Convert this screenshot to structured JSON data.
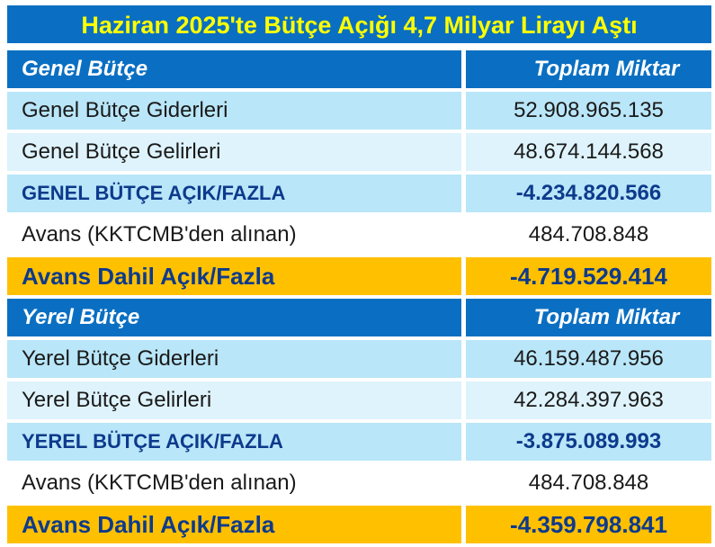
{
  "title": "Haziran 2025'te Bütçe Açığı 4,7 Milyar Lirayı Aştı",
  "genel": {
    "header": "Genel Bütçe",
    "amount_header": "Toplam Miktar",
    "rows": [
      {
        "label": "Genel Bütçe Giderleri",
        "value": "52.908.965.135"
      },
      {
        "label": "Genel Bütçe Gelirleri",
        "value": "48.674.144.568"
      },
      {
        "label": "GENEL BÜTÇE AÇIK/FAZLA",
        "value": "-4.234.820.566"
      },
      {
        "label": "Avans (KKTCMB'den alınan)",
        "value": "484.708.848"
      },
      {
        "label": "Avans Dahil Açık/Fazla",
        "value": "-4.719.529.414"
      }
    ]
  },
  "yerel": {
    "header": "Yerel Bütçe",
    "amount_header": "Toplam Miktar",
    "rows": [
      {
        "label": "Yerel Bütçe Giderleri",
        "value": "46.159.487.956"
      },
      {
        "label": "Yerel Bütçe Gelirleri",
        "value": "42.284.397.963"
      },
      {
        "label": "YEREL BÜTÇE AÇIK/FAZLA",
        "value": "-3.875.089.993"
      },
      {
        "label": "Avans (KKTCMB'den alınan)",
        "value": "484.708.848"
      },
      {
        "label": "Avans Dahil Açık/Fazla",
        "value": "-4.359.798.841"
      }
    ]
  },
  "colors": {
    "header_blue": "#0a6fc2",
    "title_yellow": "#ffff00",
    "row_light": "#b9e6f8",
    "row_lighter": "#def3fb",
    "highlight_gold": "#ffc000",
    "total_text": "#0d3a8c"
  }
}
